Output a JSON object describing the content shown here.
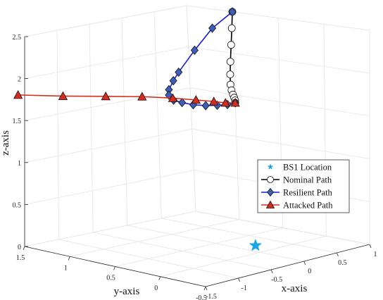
{
  "chart_data": {
    "type": "line",
    "plot_kind": "3d",
    "view": "perspective",
    "grid": true,
    "legend_position": "right, lower-middle",
    "xlabel": "x-axis",
    "ylabel": "y-axis",
    "zlabel": "z-axis",
    "xlim": [
      -1.5,
      1
    ],
    "ylim": [
      -0.5,
      1.5
    ],
    "zlim": [
      0,
      2.5
    ],
    "xticks": [
      "-1.5",
      "-1",
      "-0.5",
      "0",
      "0.5",
      "1"
    ],
    "yticks": [
      "-0.5",
      "0",
      "0.5",
      "1",
      "1.5"
    ],
    "zticks": [
      "0",
      "0.5",
      "1",
      "1.5",
      "2",
      "2.5"
    ],
    "series": [
      {
        "name": "BS1 Location",
        "color": "#1aa7e8",
        "marker": "star",
        "points": [
          [
            0.2,
            0.2,
            0
          ]
        ]
      },
      {
        "name": "Nominal Path",
        "color": "#000000",
        "marker": "circle",
        "points": [
          [
            1.0,
            1.0,
            2.5
          ],
          [
            0.86,
            0.91,
            2.35
          ],
          [
            0.72,
            0.82,
            2.2
          ],
          [
            0.58,
            0.73,
            2.05
          ],
          [
            0.45,
            0.64,
            1.95
          ],
          [
            0.33,
            0.55,
            1.88
          ],
          [
            0.25,
            0.48,
            1.85
          ],
          [
            0.19,
            0.42,
            1.83
          ],
          [
            0.14,
            0.37,
            1.82
          ],
          [
            0.1,
            0.33,
            1.81
          ],
          [
            0.06,
            0.3,
            1.8
          ]
        ]
      },
      {
        "name": "Resilient Path",
        "color": "#1a1adc",
        "marker": "diamond",
        "points": [
          [
            1.0,
            1.0,
            2.5
          ],
          [
            0.62,
            0.95,
            2.4
          ],
          [
            0.22,
            0.86,
            2.25
          ],
          [
            -0.15,
            0.77,
            2.1
          ],
          [
            -0.3,
            0.72,
            2.05
          ],
          [
            -0.45,
            0.66,
            2.0
          ],
          [
            -0.52,
            0.61,
            1.97
          ],
          [
            -0.53,
            0.55,
            1.93
          ],
          [
            -0.47,
            0.5,
            1.9
          ],
          [
            -0.37,
            0.45,
            1.86
          ],
          [
            -0.25,
            0.4,
            1.83
          ],
          [
            -0.13,
            0.36,
            1.81
          ],
          [
            -0.03,
            0.32,
            1.8
          ],
          [
            0.06,
            0.3,
            1.8
          ]
        ]
      },
      {
        "name": "Attacked Path",
        "color": "#d62c1e",
        "marker": "triangle",
        "points": [
          [
            -1.6,
            1.5,
            1.82
          ],
          [
            -1.23,
            1.27,
            1.85
          ],
          [
            -0.88,
            1.05,
            1.87
          ],
          [
            -0.6,
            0.85,
            1.88
          ],
          [
            -0.38,
            0.67,
            1.87
          ],
          [
            -0.22,
            0.53,
            1.85
          ],
          [
            -0.1,
            0.42,
            1.83
          ],
          [
            -0.02,
            0.35,
            1.81
          ],
          [
            0.06,
            0.3,
            1.8
          ]
        ]
      }
    ]
  }
}
